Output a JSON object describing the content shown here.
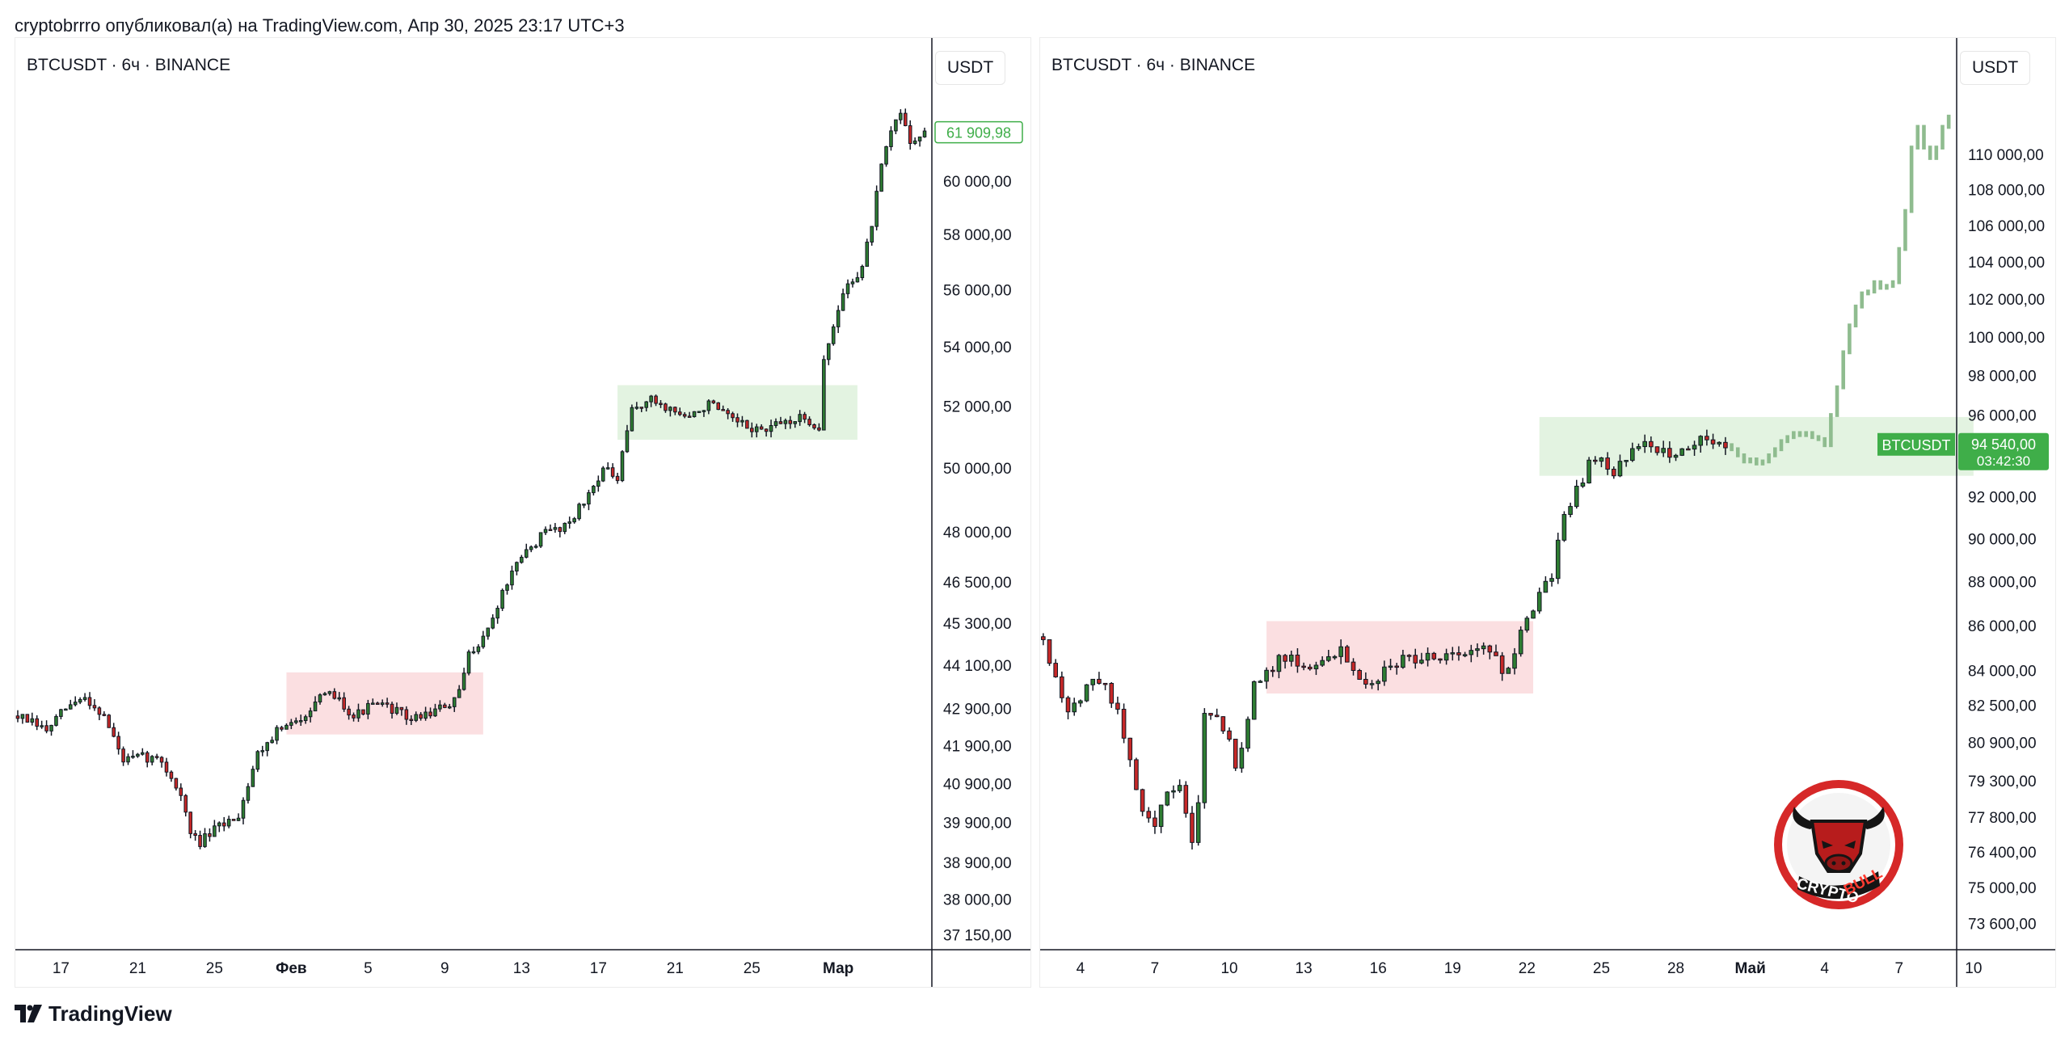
{
  "header": {
    "attribution": "cryptobrrro опубликовал(а) на TradingView.com, Апр 30, 2025 23:17 UTC+3"
  },
  "footer": {
    "brand": "TradingView",
    "brand_icon": "tradingview-logo-icon"
  },
  "logo": {
    "line1": "CRYPTO",
    "line2": "BULL",
    "icon": "bull-head-icon"
  },
  "colors": {
    "up": "#2e7d32",
    "down": "#c62828",
    "green_zone": "#e3f3e1",
    "red_zone": "#fbdfe1",
    "forecast": "#8fbc8f",
    "price_label": "#3fae49"
  },
  "chart_data": [
    {
      "type": "candlestick",
      "symbol_title": "BTCUSDT · 6ч · BINANCE",
      "currency": "USDT",
      "last_price": "61 909,98",
      "ylim": [
        36800,
        63400
      ],
      "y_scale": "log",
      "y_ticks": [
        {
          "value": 60000,
          "label": "60 000,00"
        },
        {
          "value": 58000,
          "label": "58 000,00"
        },
        {
          "value": 56000,
          "label": "56 000,00"
        },
        {
          "value": 54000,
          "label": "54 000,00"
        },
        {
          "value": 52000,
          "label": "52 000,00"
        },
        {
          "value": 50000,
          "label": "50 000,00"
        },
        {
          "value": 48000,
          "label": "48 000,00"
        },
        {
          "value": 46500,
          "label": "46 500,00"
        },
        {
          "value": 45300,
          "label": "45 300,00"
        },
        {
          "value": 44100,
          "label": "44 100,00"
        },
        {
          "value": 42900,
          "label": "42 900,00"
        },
        {
          "value": 41900,
          "label": "41 900,00"
        },
        {
          "value": 40900,
          "label": "40 900,00"
        },
        {
          "value": 39900,
          "label": "39 900,00"
        },
        {
          "value": 38900,
          "label": "38 900,00"
        },
        {
          "value": 38000,
          "label": "38 000,00"
        },
        {
          "value": 37150,
          "label": "37 150,00"
        }
      ],
      "x_ticks": [
        {
          "index": 9,
          "label": "17"
        },
        {
          "index": 25,
          "label": "21"
        },
        {
          "index": 41,
          "label": "25"
        },
        {
          "index": 57,
          "label": "Фев",
          "bold": true
        },
        {
          "index": 73,
          "label": "5"
        },
        {
          "index": 89,
          "label": "9"
        },
        {
          "index": 105,
          "label": "13"
        },
        {
          "index": 121,
          "label": "17"
        },
        {
          "index": 137,
          "label": "21"
        },
        {
          "index": 153,
          "label": "25"
        },
        {
          "index": 171,
          "label": "Мар",
          "bold": true
        }
      ],
      "zones": [
        {
          "kind": "red",
          "from": 56,
          "to": 97,
          "low": 42200,
          "high": 43900
        },
        {
          "kind": "green",
          "from": 125,
          "to": 175,
          "low": 50900,
          "high": 52700
        }
      ],
      "anchors": [
        [
          0,
          42700
        ],
        [
          6,
          42300
        ],
        [
          10,
          42900
        ],
        [
          14,
          43200
        ],
        [
          18,
          42700
        ],
        [
          22,
          41500
        ],
        [
          26,
          41600
        ],
        [
          30,
          41500
        ],
        [
          34,
          40600
        ],
        [
          36,
          39600
        ],
        [
          38,
          39400
        ],
        [
          42,
          39800
        ],
        [
          46,
          40100
        ],
        [
          50,
          41700
        ],
        [
          54,
          42300
        ],
        [
          58,
          42500
        ],
        [
          62,
          43100
        ],
        [
          66,
          43300
        ],
        [
          70,
          42700
        ],
        [
          74,
          43000
        ],
        [
          78,
          42900
        ],
        [
          82,
          42600
        ],
        [
          86,
          42800
        ],
        [
          90,
          43000
        ],
        [
          92,
          43300
        ],
        [
          94,
          44400
        ],
        [
          98,
          45100
        ],
        [
          102,
          46500
        ],
        [
          106,
          47400
        ],
        [
          110,
          48000
        ],
        [
          114,
          48200
        ],
        [
          118,
          48900
        ],
        [
          122,
          50000
        ],
        [
          125,
          49600
        ],
        [
          128,
          51900
        ],
        [
          132,
          52200
        ],
        [
          136,
          51900
        ],
        [
          140,
          51600
        ],
        [
          144,
          52100
        ],
        [
          148,
          51600
        ],
        [
          152,
          51300
        ],
        [
          156,
          51200
        ],
        [
          160,
          51500
        ],
        [
          164,
          51600
        ],
        [
          167,
          51300
        ],
        [
          168,
          53600
        ],
        [
          170,
          54600
        ],
        [
          172,
          55900
        ],
        [
          176,
          56800
        ],
        [
          178,
          58400
        ],
        [
          180,
          60500
        ],
        [
          182,
          61900
        ],
        [
          184,
          62700
        ],
        [
          186,
          61600
        ],
        [
          188,
          61700
        ],
        [
          189,
          61900
        ]
      ],
      "n": 190
    },
    {
      "type": "candlestick",
      "symbol_title": "BTCUSDT · 6ч · BINANCE",
      "currency": "USDT",
      "price_tag": {
        "symbol": "BTCUSDT",
        "price": "94 540,00",
        "countdown": "03:42:30",
        "value": 94540
      },
      "ylim": [
        72600,
        113500
      ],
      "y_scale": "log",
      "y_ticks": [
        {
          "value": 110000,
          "label": "110 000,00"
        },
        {
          "value": 108000,
          "label": "108 000,00"
        },
        {
          "value": 106000,
          "label": "106 000,00"
        },
        {
          "value": 104000,
          "label": "104 000,00"
        },
        {
          "value": 102000,
          "label": "102 000,00"
        },
        {
          "value": 100000,
          "label": "100 000,00"
        },
        {
          "value": 98000,
          "label": "98 000,00"
        },
        {
          "value": 96000,
          "label": "96 000,00"
        },
        {
          "value": 92000,
          "label": "92 000,00"
        },
        {
          "value": 90000,
          "label": "90 000,00"
        },
        {
          "value": 88000,
          "label": "88 000,00"
        },
        {
          "value": 86000,
          "label": "86 000,00"
        },
        {
          "value": 84000,
          "label": "84 000,00"
        },
        {
          "value": 82500,
          "label": "82 500,00"
        },
        {
          "value": 80900,
          "label": "80 900,00"
        },
        {
          "value": 79300,
          "label": "79 300,00"
        },
        {
          "value": 77800,
          "label": "77 800,00"
        },
        {
          "value": 76400,
          "label": "76 400,00"
        },
        {
          "value": 75000,
          "label": "75 000,00"
        },
        {
          "value": 73600,
          "label": "73 600,00"
        }
      ],
      "x_ticks": [
        {
          "index": 6,
          "label": "4"
        },
        {
          "index": 18,
          "label": "7"
        },
        {
          "index": 30,
          "label": "10"
        },
        {
          "index": 42,
          "label": "13"
        },
        {
          "index": 54,
          "label": "16"
        },
        {
          "index": 66,
          "label": "19"
        },
        {
          "index": 78,
          "label": "22"
        },
        {
          "index": 90,
          "label": "25"
        },
        {
          "index": 102,
          "label": "28"
        },
        {
          "index": 114,
          "label": "Май",
          "bold": true
        },
        {
          "index": 126,
          "label": "4"
        },
        {
          "index": 138,
          "label": "7"
        },
        {
          "index": 150,
          "label": "10"
        }
      ],
      "zones": [
        {
          "kind": "red",
          "from": 36,
          "to": 79,
          "low": 83000,
          "high": 86200
        },
        {
          "kind": "green",
          "from": 80,
          "to": 150,
          "low": 93000,
          "high": 95900
        }
      ],
      "anchors": [
        [
          0,
          85500
        ],
        [
          2,
          83500
        ],
        [
          4,
          82300
        ],
        [
          6,
          82800
        ],
        [
          8,
          83600
        ],
        [
          10,
          83200
        ],
        [
          12,
          82200
        ],
        [
          14,
          80000
        ],
        [
          16,
          78200
        ],
        [
          18,
          77500
        ],
        [
          20,
          78800
        ],
        [
          22,
          79000
        ],
        [
          24,
          76600
        ],
        [
          25,
          78500
        ],
        [
          26,
          81900
        ],
        [
          28,
          82200
        ],
        [
          30,
          80900
        ],
        [
          31,
          79600
        ],
        [
          32,
          80800
        ],
        [
          34,
          83300
        ],
        [
          36,
          83800
        ],
        [
          38,
          84600
        ],
        [
          42,
          84300
        ],
        [
          46,
          84400
        ],
        [
          48,
          84900
        ],
        [
          50,
          84100
        ],
        [
          52,
          83600
        ],
        [
          54,
          83700
        ],
        [
          56,
          84200
        ],
        [
          58,
          84500
        ],
        [
          62,
          84600
        ],
        [
          66,
          84800
        ],
        [
          70,
          84900
        ],
        [
          73,
          84800
        ],
        [
          74,
          84000
        ],
        [
          76,
          84700
        ],
        [
          78,
          86400
        ],
        [
          80,
          87400
        ],
        [
          82,
          88300
        ],
        [
          84,
          91100
        ],
        [
          86,
          92300
        ],
        [
          88,
          93500
        ],
        [
          90,
          94000
        ],
        [
          92,
          93200
        ],
        [
          94,
          93900
        ],
        [
          96,
          94600
        ],
        [
          98,
          94400
        ],
        [
          100,
          94200
        ],
        [
          102,
          93900
        ],
        [
          104,
          94500
        ],
        [
          106,
          94800
        ],
        [
          108,
          94700
        ],
        [
          110,
          94500
        ]
      ],
      "n": 111,
      "forecast": [
        [
          111,
          94300
        ],
        [
          112,
          94000
        ],
        [
          113,
          93700
        ],
        [
          114,
          93800
        ],
        [
          115,
          93600
        ],
        [
          116,
          93700
        ],
        [
          117,
          94000
        ],
        [
          118,
          94300
        ],
        [
          119,
          94700
        ],
        [
          120,
          94900
        ],
        [
          121,
          95100
        ],
        [
          122,
          95000
        ],
        [
          123,
          95100
        ],
        [
          124,
          94900
        ],
        [
          125,
          94800
        ],
        [
          126,
          94500
        ],
        [
          127,
          96000
        ],
        [
          128,
          97400
        ],
        [
          129,
          99200
        ],
        [
          130,
          100600
        ],
        [
          131,
          101600
        ],
        [
          132,
          102300
        ],
        [
          133,
          102400
        ],
        [
          134,
          102900
        ],
        [
          135,
          102600
        ],
        [
          136,
          102700
        ],
        [
          137,
          102900
        ],
        [
          138,
          104700
        ],
        [
          139,
          106800
        ],
        [
          140,
          110400
        ],
        [
          141,
          111600
        ],
        [
          142,
          110400
        ],
        [
          143,
          109800
        ],
        [
          144,
          110400
        ],
        [
          145,
          111600
        ],
        [
          146,
          112200
        ]
      ]
    }
  ]
}
